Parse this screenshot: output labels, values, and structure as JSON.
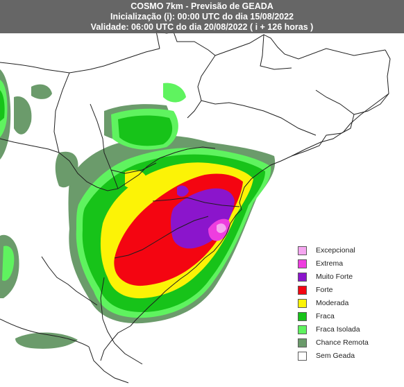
{
  "title": {
    "line1": "COSMO 7km - Previsão de GEADA",
    "line2": "Inicialização (i): 00:00 UTC do dia 15/08/2022",
    "line3": "Validade: 06:00 UTC do dia 20/08/2022 ( i + 126 horas )"
  },
  "legend": {
    "items": [
      {
        "label": "Excepcional",
        "color": "#f5a6f0"
      },
      {
        "label": "Extrema",
        "color": "#ee3ddf"
      },
      {
        "label": "Muito Forte",
        "color": "#8b15cc"
      },
      {
        "label": "Forte",
        "color": "#f40511"
      },
      {
        "label": "Moderada",
        "color": "#fcf306"
      },
      {
        "label": "Fraca",
        "color": "#17c319"
      },
      {
        "label": "Fraca Isolada",
        "color": "#5ff35f"
      },
      {
        "label": "Chance Remota",
        "color": "#6b9b6b"
      },
      {
        "label": "Sem Geada",
        "color": "#ffffff"
      }
    ]
  },
  "colors": {
    "background": "#ffffff",
    "borders": "#1e1e1e",
    "title_bar": "#5a5a5a"
  }
}
